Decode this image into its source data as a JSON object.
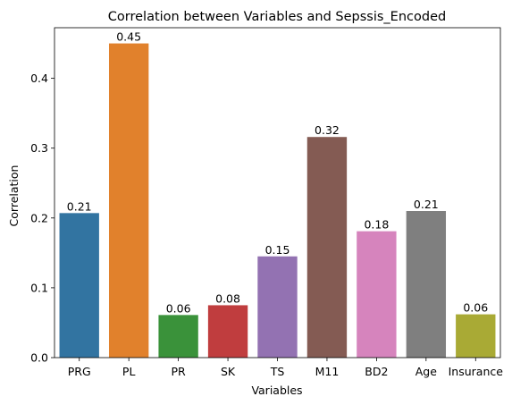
{
  "chart_data": {
    "type": "bar",
    "title": "Correlation between Variables and Sepssis_Encoded",
    "xlabel": "Variables",
    "ylabel": "Correlation",
    "categories": [
      "PRG",
      "PL",
      "PR",
      "SK",
      "TS",
      "M11",
      "BD2",
      "Age",
      "Insurance"
    ],
    "values": [
      0.207,
      0.45,
      0.061,
      0.075,
      0.145,
      0.316,
      0.181,
      0.21,
      0.062
    ],
    "value_labels": [
      "0.21",
      "0.45",
      "0.06",
      "0.08",
      "0.15",
      "0.32",
      "0.18",
      "0.21",
      "0.06"
    ],
    "colors": [
      "#3274a1",
      "#e1812c",
      "#3a923a",
      "#c03d3e",
      "#9372b2",
      "#845b53",
      "#d684bd",
      "#7f7f7f",
      "#a9aa35"
    ],
    "ylim": [
      0,
      0.4725
    ],
    "yticks": [
      0.0,
      0.1,
      0.2,
      0.3,
      0.4
    ],
    "ytick_labels": [
      "0.0",
      "0.1",
      "0.2",
      "0.3",
      "0.4"
    ],
    "grid": false,
    "legend": "none"
  }
}
